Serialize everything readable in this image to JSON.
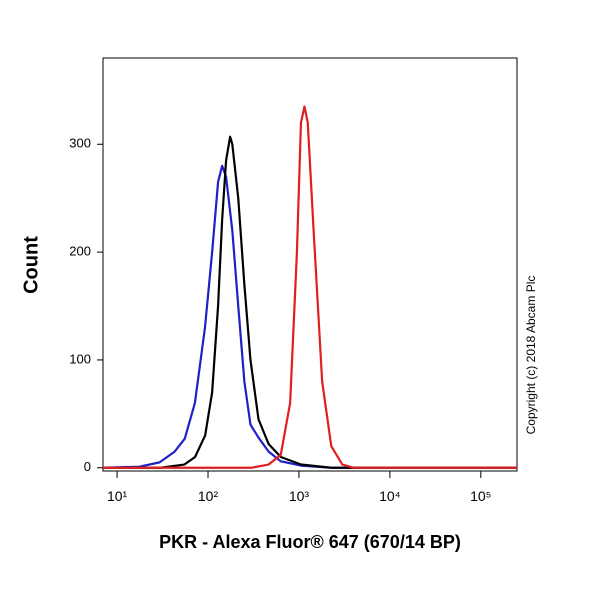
{
  "chart_data": {
    "type": "line",
    "x_label": "PKR - Alexa Fluor® 647 (670/14 BP)",
    "y_label": "Count",
    "annotation": "Copyright (c) 2018 Abcam Plc",
    "xscale": "log",
    "xlim": [
      7,
      250000
    ],
    "ylim": [
      -3,
      380
    ],
    "xticks": [
      {
        "value": 10,
        "label": "10¹"
      },
      {
        "value": 100,
        "label": "10²"
      },
      {
        "value": 1000,
        "label": "10³"
      },
      {
        "value": 10000,
        "label": "10⁴"
      },
      {
        "value": 100000,
        "label": "10⁵"
      }
    ],
    "yticks": [
      0,
      100,
      200,
      300
    ],
    "series": [
      {
        "color": "#2020c8",
        "x": [
          7,
          17.6,
          29.3,
          43,
          55.5,
          71.7,
          92.6,
          111,
          129,
          143,
          158,
          185,
          215,
          251,
          293,
          359,
          464,
          631,
          1052,
          2268,
          250000
        ],
        "values": [
          0,
          1,
          5,
          15,
          27,
          60,
          130,
          200,
          265,
          280,
          270,
          220,
          150,
          80,
          40,
          28,
          15,
          6,
          2,
          0,
          0
        ]
      },
      {
        "color": "#000000",
        "x": [
          7,
          30,
          55,
          72,
          93,
          111,
          129,
          143,
          158,
          175,
          185,
          215,
          251,
          293,
          359,
          464,
          631,
          1052,
          2268,
          250000
        ],
        "values": [
          0,
          0,
          3,
          10,
          30,
          70,
          150,
          230,
          285,
          307,
          300,
          250,
          170,
          100,
          45,
          22,
          10,
          3,
          0,
          0
        ]
      },
      {
        "color": "#e02020",
        "x": [
          7,
          300,
          464,
          631,
          800,
          950,
          1052,
          1150,
          1250,
          1450,
          1800,
          2268,
          3000,
          4000,
          250000
        ],
        "values": [
          0,
          0,
          3,
          12,
          60,
          200,
          320,
          335,
          320,
          220,
          80,
          20,
          3,
          0,
          0
        ]
      }
    ]
  }
}
